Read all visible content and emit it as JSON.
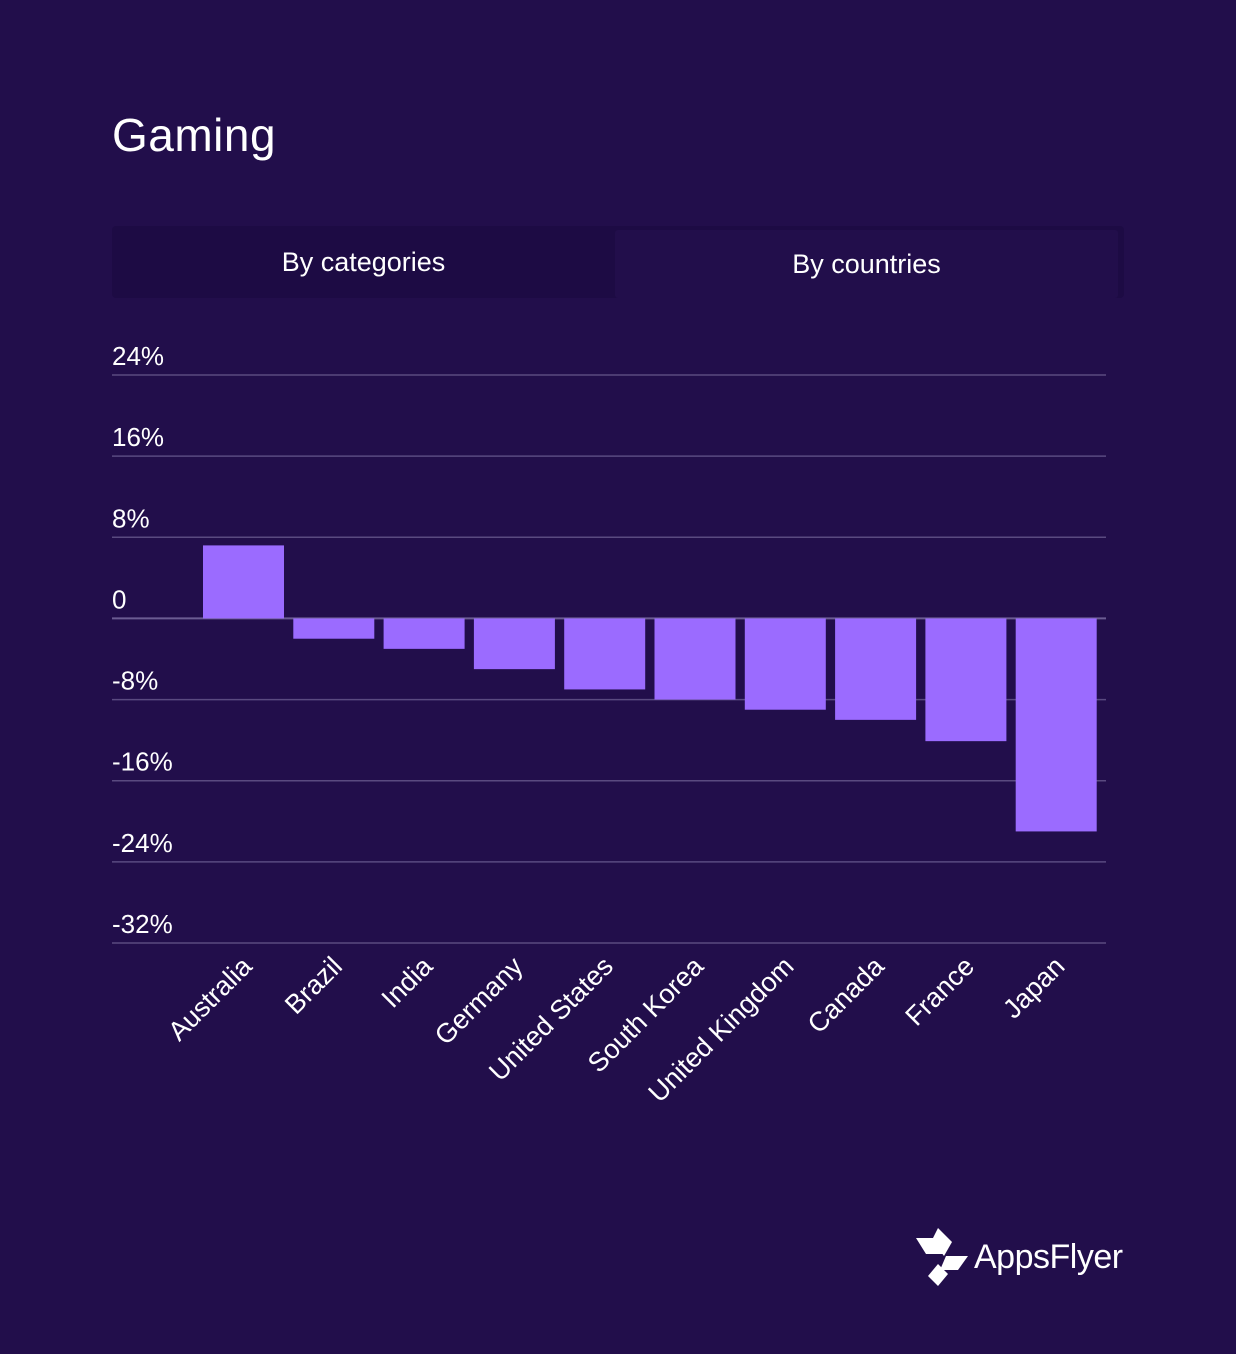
{
  "title": "Gaming",
  "tabs": [
    {
      "label": "By categories",
      "active": false
    },
    {
      "label": "By countries",
      "active": true
    }
  ],
  "brand": {
    "name": "AppsFlyer"
  },
  "colors": {
    "background": "#220e4b",
    "bar": "#9b6bff",
    "grid": "#5a4a80"
  },
  "chart_data": {
    "type": "bar",
    "title": "Gaming",
    "xlabel": "",
    "ylabel": "",
    "categories": [
      "Australia",
      "Brazil",
      "India",
      "Germany",
      "United States",
      "South Korea",
      "United Kingdom",
      "Canada",
      "France",
      "Japan"
    ],
    "values": [
      7.2,
      -2.0,
      -3.0,
      -5.0,
      -7.0,
      -8.0,
      -9.0,
      -10.0,
      -12.1,
      -21.0
    ],
    "unit": "%",
    "ylim": [
      -32,
      24
    ],
    "yticks": [
      24,
      16,
      8,
      0,
      -8,
      -16,
      -24,
      -32
    ],
    "ytick_labels": [
      "24%",
      "16%",
      "8%",
      "0",
      "-8%",
      "-16%",
      "-24%",
      "-32%"
    ],
    "grid": true
  }
}
